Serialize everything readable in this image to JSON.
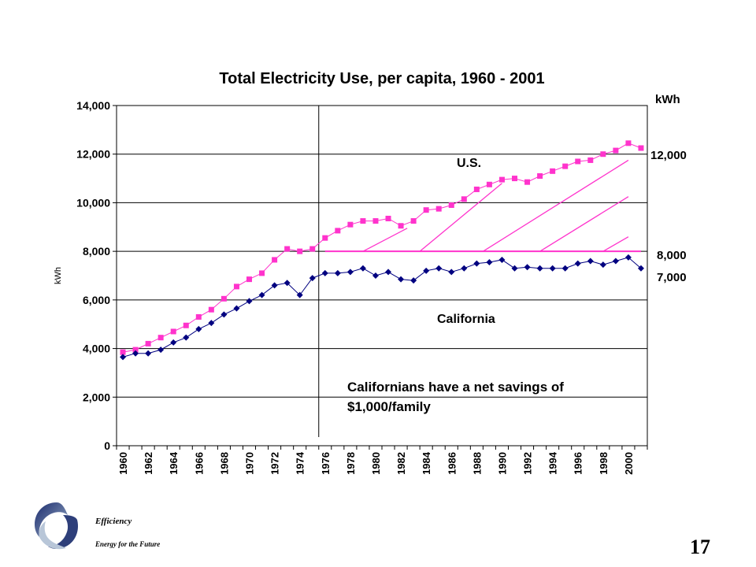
{
  "chart_data": {
    "type": "line",
    "title": "Total Electricity Use,  per capita, 1960 - 2001",
    "ylabel": "kWh",
    "right_unit_label": "kWh",
    "ylim": [
      0,
      14000
    ],
    "yticks": [
      "0",
      "2,000",
      "4,000",
      "6,000",
      "8,000",
      "10,000",
      "12,000",
      "14,000"
    ],
    "xticks": [
      "1960",
      "1962",
      "1964",
      "1966",
      "1968",
      "1970",
      "1972",
      "1974",
      "1976",
      "1978",
      "1980",
      "1982",
      "1984",
      "1986",
      "1988",
      "1990",
      "1992",
      "1994",
      "1996",
      "1998",
      "2000"
    ],
    "x": [
      1960,
      1961,
      1962,
      1963,
      1964,
      1965,
      1966,
      1967,
      1968,
      1969,
      1970,
      1971,
      1972,
      1973,
      1974,
      1975,
      1976,
      1977,
      1978,
      1979,
      1980,
      1981,
      1982,
      1983,
      1984,
      1985,
      1986,
      1987,
      1988,
      1989,
      1990,
      1991,
      1992,
      1993,
      1994,
      1995,
      1996,
      1997,
      1998,
      1999,
      2000,
      2001
    ],
    "series": [
      {
        "name": "U.S.",
        "color": "#ff33cc",
        "marker": "square",
        "values": [
          3850,
          3950,
          4200,
          4450,
          4700,
          4950,
          5300,
          5600,
          6050,
          6550,
          6850,
          7100,
          7650,
          8100,
          8000,
          8100,
          8550,
          8850,
          9100,
          9250,
          9250,
          9350,
          9050,
          9250,
          9700,
          9750,
          9900,
          10150,
          10550,
          10750,
          10950,
          11000,
          10850,
          11100,
          11300,
          11500,
          11700,
          11750,
          12000,
          12150,
          12450,
          12250
        ]
      },
      {
        "name": "California",
        "color": "#000080",
        "marker": "diamond",
        "values": [
          3650,
          3800,
          3800,
          3950,
          4250,
          4450,
          4800,
          5050,
          5400,
          5650,
          5950,
          6200,
          6600,
          6700,
          6200,
          6900,
          7100,
          7100,
          7150,
          7300,
          7000,
          7150,
          6850,
          6800,
          7200,
          7300,
          7150,
          7300,
          7500,
          7550,
          7650,
          7300,
          7350,
          7300,
          7300,
          7300,
          7500,
          7600,
          7450,
          7600,
          7750,
          7300
        ]
      }
    ],
    "vertical_marker_x": 1975.5,
    "reference_line": {
      "y": 8000,
      "from_x": 1976,
      "to_x": 2001,
      "color": "#ff33cc"
    },
    "hatch_lines": [
      {
        "from": [
          1979,
          8000
        ],
        "to": [
          1982.5,
          8950
        ]
      },
      {
        "from": [
          1983.5,
          8000
        ],
        "to": [
          1990,
          10800
        ]
      },
      {
        "from": [
          1988.5,
          8000
        ],
        "to": [
          2000,
          11750
        ]
      },
      {
        "from": [
          1993,
          8000
        ],
        "to": [
          2000,
          10250
        ]
      },
      {
        "from": [
          1998,
          8000
        ],
        "to": [
          2000,
          8600
        ]
      }
    ],
    "right_labels": [
      "12,000",
      "8,000",
      "7,000"
    ],
    "annotation": [
      "Californians have a net savings of",
      "$1,000/family"
    ],
    "grid": true,
    "legend": "none"
  },
  "footer": {
    "org_line1": "Efficiency",
    "org_line2": "Energy for the Future",
    "page_number": "17"
  }
}
